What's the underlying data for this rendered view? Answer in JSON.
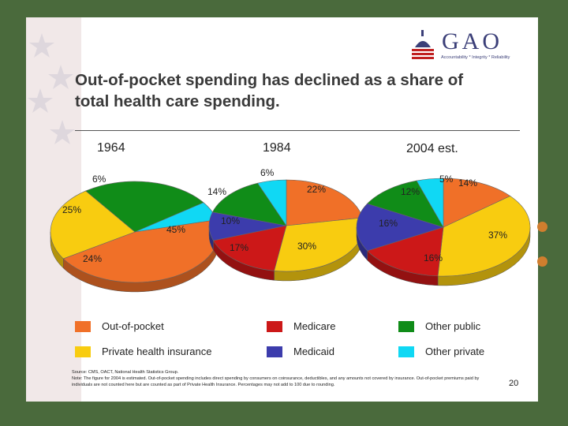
{
  "logo": {
    "text": "GAO",
    "tagline": "Accountability * Integrity * Reliability"
  },
  "title": "Out-of-pocket spending has declined as a share of total health care spending.",
  "colors": {
    "out_of_pocket": "#f07028",
    "private_health_insurance": "#f8cc10",
    "medicare": "#cc1818",
    "medicaid": "#3c3cac",
    "other_public": "#108c18",
    "other_private": "#10d8f4"
  },
  "chart_data": [
    {
      "type": "pie",
      "title": "1964",
      "slices": [
        {
          "name": "Out-of-pocket",
          "value": 45,
          "label": "45%"
        },
        {
          "name": "Private health insurance",
          "value": 24,
          "label": "24%"
        },
        {
          "name": "Other public",
          "value": 25,
          "label": "25%"
        },
        {
          "name": "Other private",
          "value": 6,
          "label": "6%"
        }
      ]
    },
    {
      "type": "pie",
      "title": "1984",
      "slices": [
        {
          "name": "Out-of-pocket",
          "value": 22,
          "label": "22%"
        },
        {
          "name": "Private health insurance",
          "value": 30,
          "label": "30%"
        },
        {
          "name": "Medicare",
          "value": 17,
          "label": "17%"
        },
        {
          "name": "Medicaid",
          "value": 10,
          "label": "10%"
        },
        {
          "name": "Other public",
          "value": 14,
          "label": "14%"
        },
        {
          "name": "Other private",
          "value": 6,
          "label": "6%"
        }
      ]
    },
    {
      "type": "pie",
      "title": "2004 est.",
      "slices": [
        {
          "name": "Out-of-pocket",
          "value": 14,
          "label": "14%"
        },
        {
          "name": "Private health insurance",
          "value": 37,
          "label": "37%"
        },
        {
          "name": "Medicare",
          "value": 16,
          "label": "16%"
        },
        {
          "name": "Medicaid",
          "value": 16,
          "label": "16%"
        },
        {
          "name": "Other public",
          "value": 12,
          "label": "12%"
        },
        {
          "name": "Other private",
          "value": 5,
          "label": "5%"
        }
      ]
    }
  ],
  "legend": [
    {
      "label": "Out-of-pocket",
      "color": "#f07028"
    },
    {
      "label": "Medicare",
      "color": "#cc1818"
    },
    {
      "label": "Other public",
      "color": "#108c18"
    },
    {
      "label": "Private health insurance",
      "color": "#f8cc10"
    },
    {
      "label": "Medicaid",
      "color": "#3c3cac"
    },
    {
      "label": "Other private",
      "color": "#10d8f4"
    }
  ],
  "footnote": {
    "source": "Source: CMS, OACT, National Health Statistics Group.",
    "note": "Note: The figure for 2004 is estimated. Out-of-pocket spending includes direct spending by consumers on coinsurance, deductibles, and any amounts not covered by insurance. Out-of-pocket premiums paid by individuals are not counted here but are counted as part of Private Health Insurance. Percentages may not add to 100 due to rounding."
  },
  "page_number": "20"
}
